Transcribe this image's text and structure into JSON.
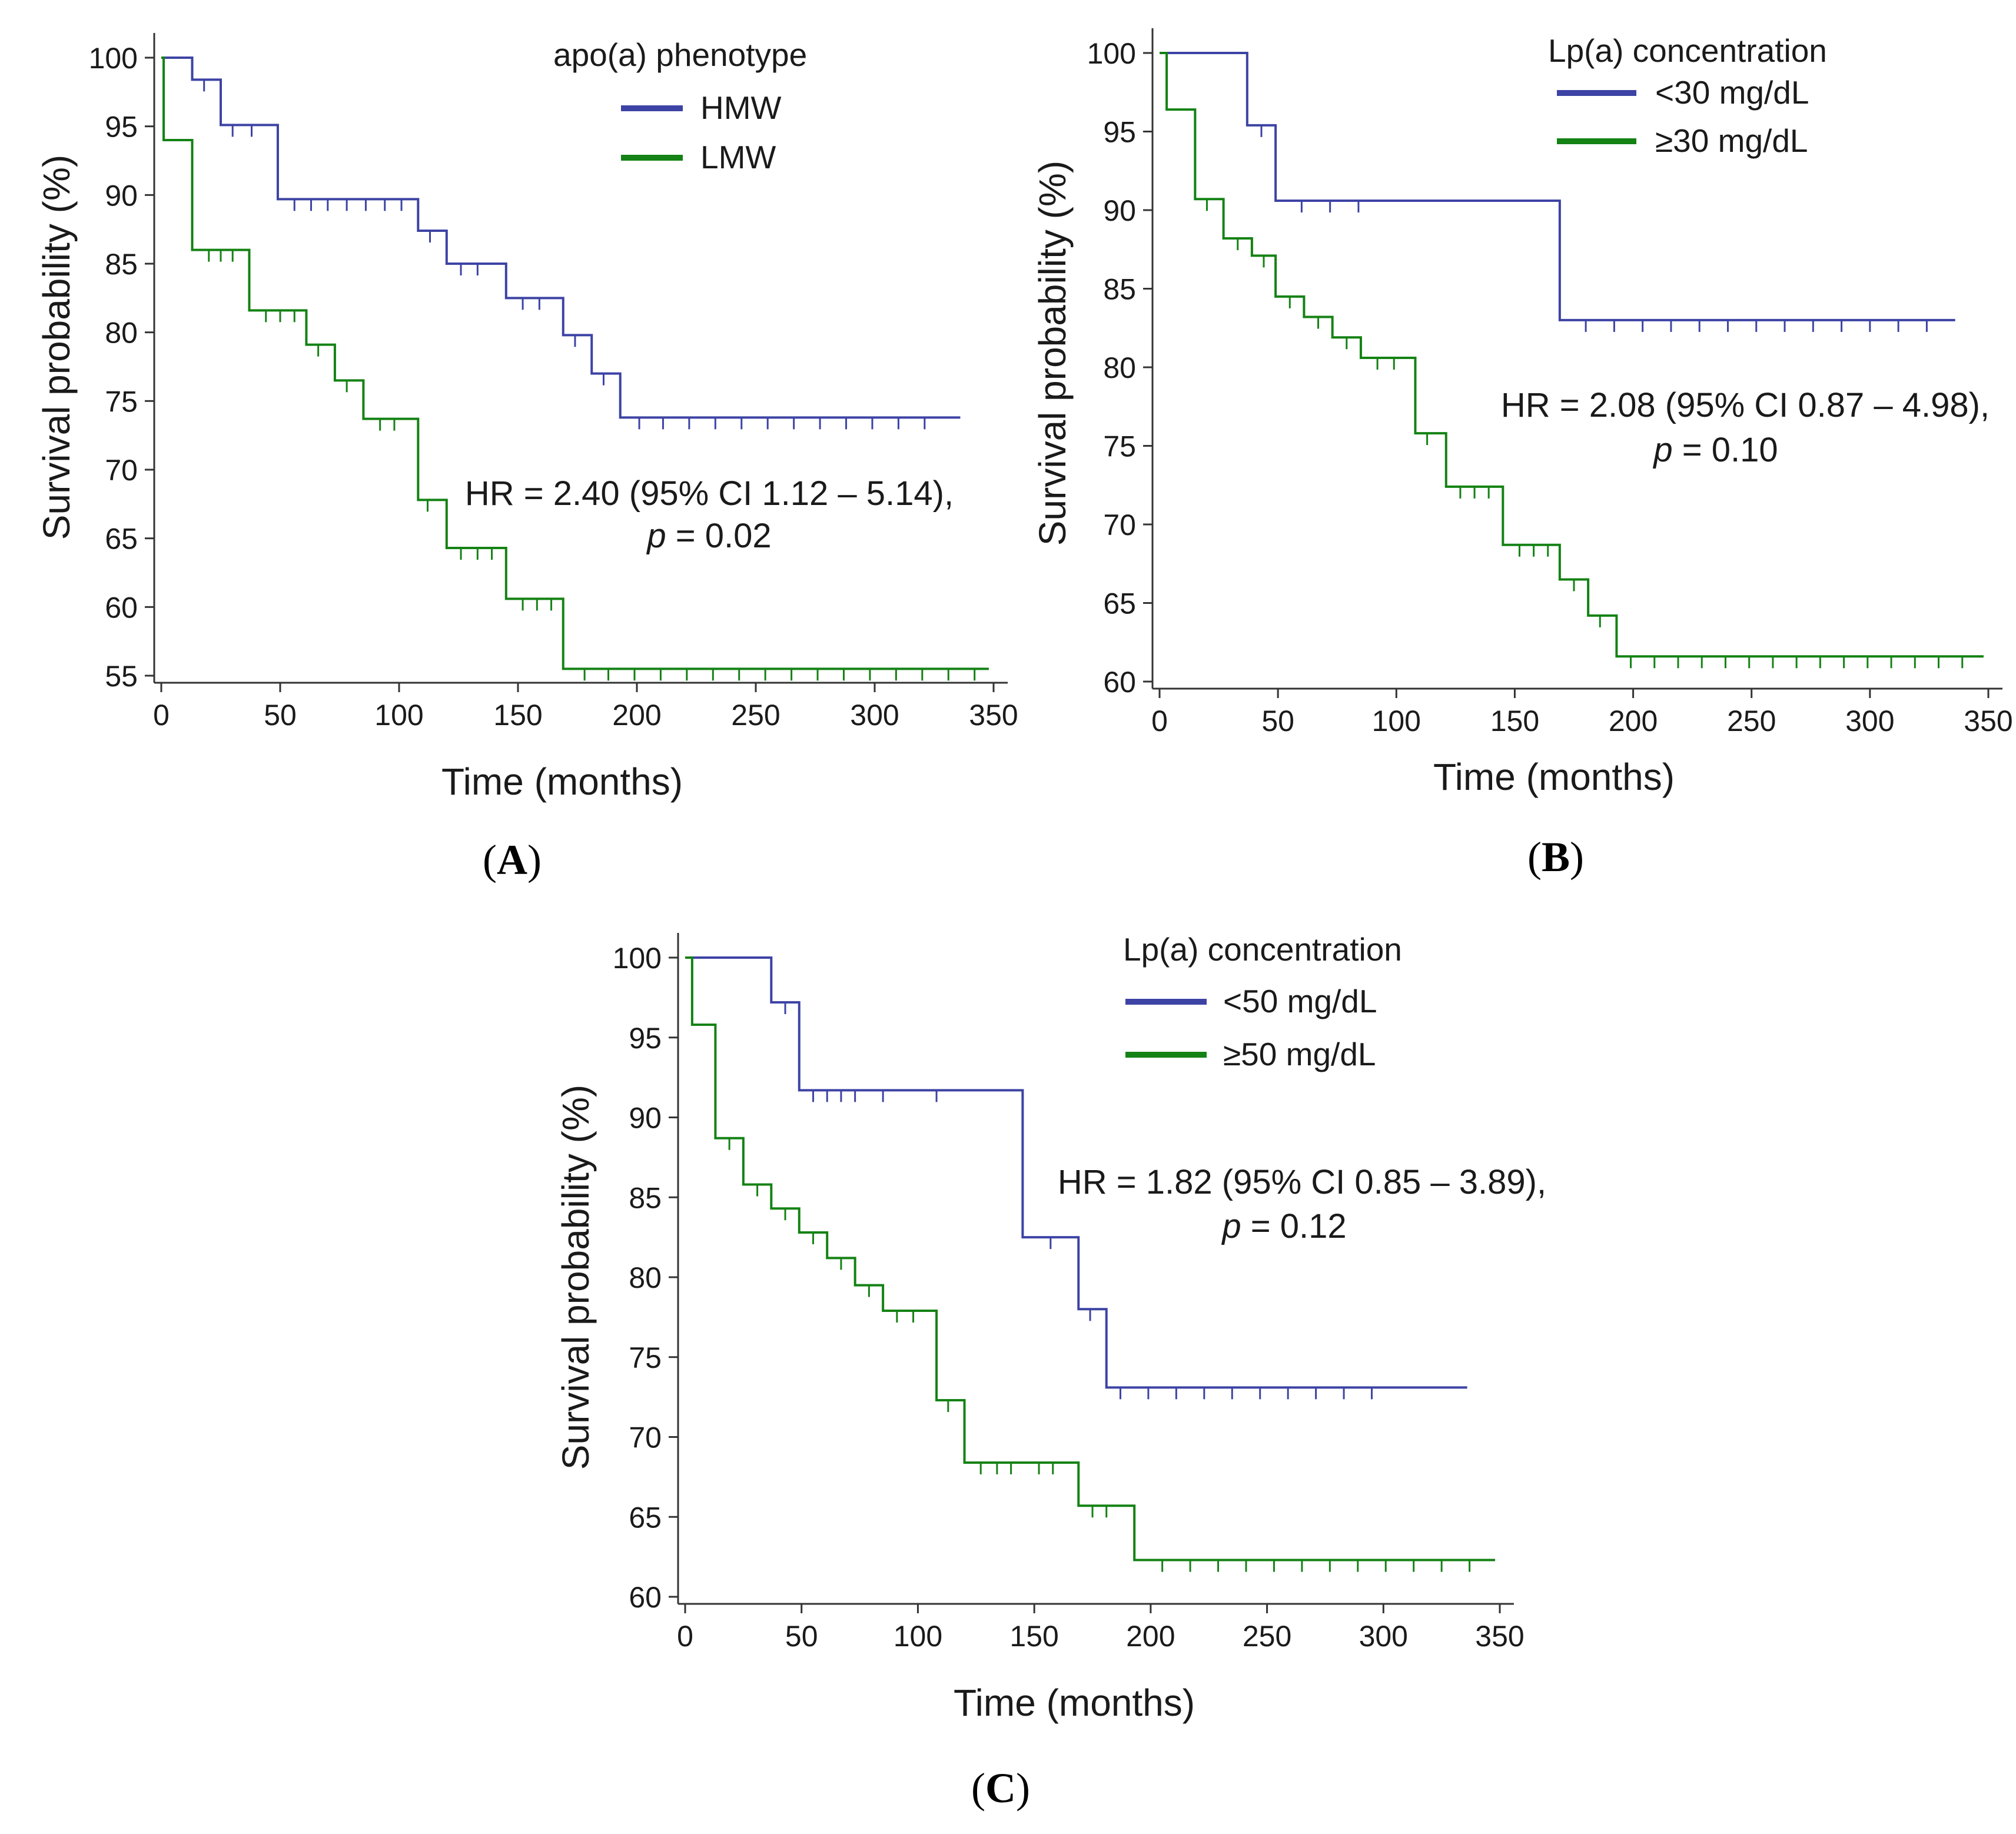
{
  "colors": {
    "high_risk_low": "#3d43a4",
    "high_risk_high": "#148214",
    "axis": "#333333"
  },
  "chart_data": [
    {
      "id": "A",
      "panel_label": "A",
      "type": "line",
      "subtype": "kaplan-meier",
      "xlabel": "Time (months)",
      "ylabel": "Survival probability (%)",
      "xlim": [
        0,
        350
      ],
      "ylim": [
        55,
        100
      ],
      "xticks": [
        0,
        50,
        100,
        150,
        200,
        250,
        300,
        350
      ],
      "yticks": [
        55,
        60,
        65,
        70,
        75,
        80,
        85,
        90,
        95,
        100
      ],
      "legend_title": "apo(a) phenotype",
      "legend_position": "top-right",
      "annotation": {
        "line1": "HR = 2.40 (95% CI 1.12 – 5.14),",
        "p_symbol": "p",
        "p_text": " = 0.02"
      },
      "series": [
        {
          "name": "HMW",
          "color": "#3d43a4",
          "steps": [
            [
              0,
              100
            ],
            [
              13,
              98.4
            ],
            [
              25,
              95.1
            ],
            [
              49,
              89.7
            ],
            [
              108,
              87.4
            ],
            [
              120,
              85.0
            ],
            [
              145,
              82.5
            ],
            [
              169,
              79.8
            ],
            [
              181,
              77.0
            ],
            [
              193,
              73.8
            ]
          ],
          "end": 336,
          "censors": [
            [
              18,
              98.4
            ],
            [
              30,
              95.1
            ],
            [
              38,
              95.1
            ],
            [
              56,
              89.7
            ],
            [
              63,
              89.7
            ],
            [
              70,
              89.7
            ],
            [
              78,
              89.7
            ],
            [
              86,
              89.7
            ],
            [
              94,
              89.7
            ],
            [
              101,
              89.7
            ],
            [
              113,
              87.4
            ],
            [
              126,
              85.0
            ],
            [
              133,
              85.0
            ],
            [
              152,
              82.5
            ],
            [
              159,
              82.5
            ],
            [
              174,
              79.8
            ],
            [
              186,
              77.0
            ],
            [
              201,
              73.8
            ],
            [
              211,
              73.8
            ],
            [
              222,
              73.8
            ],
            [
              233,
              73.8
            ],
            [
              244,
              73.8
            ],
            [
              255,
              73.8
            ],
            [
              266,
              73.8
            ],
            [
              277,
              73.8
            ],
            [
              288,
              73.8
            ],
            [
              299,
              73.8
            ],
            [
              310,
              73.8
            ],
            [
              321,
              73.8
            ]
          ]
        },
        {
          "name": "LMW",
          "color": "#148214",
          "steps": [
            [
              0,
              100
            ],
            [
              1,
              94.0
            ],
            [
              13,
              86.0
            ],
            [
              37,
              81.6
            ],
            [
              61,
              79.1
            ],
            [
              73,
              76.5
            ],
            [
              85,
              73.7
            ],
            [
              108,
              67.8
            ],
            [
              120,
              64.3
            ],
            [
              145,
              60.6
            ],
            [
              169,
              55.5
            ]
          ],
          "end": 348,
          "censors": [
            [
              20,
              86.0
            ],
            [
              25,
              86.0
            ],
            [
              30,
              86.0
            ],
            [
              44,
              81.6
            ],
            [
              50,
              81.6
            ],
            [
              56,
              81.6
            ],
            [
              66,
              79.1
            ],
            [
              78,
              76.5
            ],
            [
              92,
              73.7
            ],
            [
              98,
              73.7
            ],
            [
              112,
              67.8
            ],
            [
              126,
              64.3
            ],
            [
              133,
              64.3
            ],
            [
              139,
              64.3
            ],
            [
              152,
              60.6
            ],
            [
              158,
              60.6
            ],
            [
              164,
              60.6
            ],
            [
              178,
              55.5
            ],
            [
              188,
              55.5
            ],
            [
              199,
              55.5
            ],
            [
              210,
              55.5
            ],
            [
              221,
              55.5
            ],
            [
              232,
              55.5
            ],
            [
              243,
              55.5
            ],
            [
              254,
              55.5
            ],
            [
              265,
              55.5
            ],
            [
              276,
              55.5
            ],
            [
              287,
              55.5
            ],
            [
              298,
              55.5
            ],
            [
              309,
              55.5
            ],
            [
              320,
              55.5
            ],
            [
              331,
              55.5
            ],
            [
              342,
              55.5
            ]
          ]
        }
      ]
    },
    {
      "id": "B",
      "panel_label": "B",
      "type": "line",
      "subtype": "kaplan-meier",
      "xlabel": "Time (months)",
      "ylabel": "Survival probability (%)",
      "xlim": [
        0,
        350
      ],
      "ylim": [
        60,
        100
      ],
      "xticks": [
        0,
        50,
        100,
        150,
        200,
        250,
        300,
        350
      ],
      "yticks": [
        60,
        65,
        70,
        75,
        80,
        85,
        90,
        95,
        100
      ],
      "legend_title": "Lp(a) concentration",
      "legend_position": "top-right",
      "annotation": {
        "line1": "HR = 2.08 (95% CI 0.87 – 4.98),",
        "p_symbol": "p",
        "p_text": " = 0.10"
      },
      "series": [
        {
          "name": "<30 mg/dL",
          "color": "#3d43a4",
          "steps": [
            [
              0,
              100
            ],
            [
              37,
              95.4
            ],
            [
              49,
              90.6
            ],
            [
              169,
              83.0
            ]
          ],
          "end": 336,
          "censors": [
            [
              43,
              95.4
            ],
            [
              60,
              90.6
            ],
            [
              72,
              90.6
            ],
            [
              84,
              90.6
            ],
            [
              180,
              83.0
            ],
            [
              192,
              83.0
            ],
            [
              204,
              83.0
            ],
            [
              216,
              83.0
            ],
            [
              228,
              83.0
            ],
            [
              240,
              83.0
            ],
            [
              252,
              83.0
            ],
            [
              264,
              83.0
            ],
            [
              276,
              83.0
            ],
            [
              288,
              83.0
            ],
            [
              300,
              83.0
            ],
            [
              312,
              83.0
            ],
            [
              324,
              83.0
            ]
          ]
        },
        {
          "name": "≥30 mg/dL",
          "color": "#148214",
          "steps": [
            [
              0,
              100
            ],
            [
              3,
              96.4
            ],
            [
              15,
              90.7
            ],
            [
              27,
              88.2
            ],
            [
              39,
              87.1
            ],
            [
              49,
              84.5
            ],
            [
              61,
              83.2
            ],
            [
              73,
              81.9
            ],
            [
              85,
              80.6
            ],
            [
              108,
              75.8
            ],
            [
              121,
              72.4
            ],
            [
              145,
              68.7
            ],
            [
              169,
              66.5
            ],
            [
              181,
              64.2
            ],
            [
              193,
              61.6
            ]
          ],
          "end": 348,
          "censors": [
            [
              20,
              90.7
            ],
            [
              33,
              88.2
            ],
            [
              44,
              87.1
            ],
            [
              55,
              84.5
            ],
            [
              67,
              83.2
            ],
            [
              79,
              81.9
            ],
            [
              92,
              80.6
            ],
            [
              99,
              80.6
            ],
            [
              113,
              75.8
            ],
            [
              127,
              72.4
            ],
            [
              133,
              72.4
            ],
            [
              139,
              72.4
            ],
            [
              152,
              68.7
            ],
            [
              158,
              68.7
            ],
            [
              164,
              68.7
            ],
            [
              175,
              66.5
            ],
            [
              186,
              64.2
            ],
            [
              199,
              61.6
            ],
            [
              209,
              61.6
            ],
            [
              219,
              61.6
            ],
            [
              229,
              61.6
            ],
            [
              239,
              61.6
            ],
            [
              249,
              61.6
            ],
            [
              259,
              61.6
            ],
            [
              269,
              61.6
            ],
            [
              279,
              61.6
            ],
            [
              289,
              61.6
            ],
            [
              299,
              61.6
            ],
            [
              309,
              61.6
            ],
            [
              319,
              61.6
            ],
            [
              329,
              61.6
            ],
            [
              339,
              61.6
            ]
          ]
        }
      ]
    },
    {
      "id": "C",
      "panel_label": "C",
      "type": "line",
      "subtype": "kaplan-meier",
      "xlabel": "Time (months)",
      "ylabel": "Survival probability (%)",
      "xlim": [
        0,
        350
      ],
      "ylim": [
        60,
        100
      ],
      "xticks": [
        0,
        50,
        100,
        150,
        200,
        250,
        300,
        350
      ],
      "yticks": [
        60,
        65,
        70,
        75,
        80,
        85,
        90,
        95,
        100
      ],
      "legend_title": "Lp(a) concentration",
      "legend_position": "top-right",
      "annotation": {
        "line1": "HR = 1.82 (95% CI 0.85 – 3.89),",
        "p_symbol": "p",
        "p_text": " = 0.12"
      },
      "series": [
        {
          "name": "<50 mg/dL",
          "color": "#3d43a4",
          "steps": [
            [
              0,
              100
            ],
            [
              37,
              97.2
            ],
            [
              49,
              91.7
            ],
            [
              145,
              82.5
            ],
            [
              169,
              78.0
            ],
            [
              181,
              73.1
            ]
          ],
          "end": 336,
          "censors": [
            [
              43,
              97.2
            ],
            [
              55,
              91.7
            ],
            [
              61,
              91.7
            ],
            [
              67,
              91.7
            ],
            [
              73,
              91.7
            ],
            [
              85,
              91.7
            ],
            [
              108,
              91.7
            ],
            [
              157,
              82.5
            ],
            [
              174,
              78.0
            ],
            [
              187,
              73.1
            ],
            [
              199,
              73.1
            ],
            [
              211,
              73.1
            ],
            [
              223,
              73.1
            ],
            [
              235,
              73.1
            ],
            [
              247,
              73.1
            ],
            [
              259,
              73.1
            ],
            [
              271,
              73.1
            ],
            [
              283,
              73.1
            ],
            [
              295,
              73.1
            ]
          ]
        },
        {
          "name": "≥50 mg/dL",
          "color": "#148214",
          "steps": [
            [
              0,
              100
            ],
            [
              3,
              95.8
            ],
            [
              13,
              88.7
            ],
            [
              25,
              85.8
            ],
            [
              37,
              84.3
            ],
            [
              49,
              82.8
            ],
            [
              61,
              81.2
            ],
            [
              73,
              79.5
            ],
            [
              85,
              77.9
            ],
            [
              108,
              72.3
            ],
            [
              120,
              68.4
            ],
            [
              169,
              65.7
            ],
            [
              193,
              62.3
            ]
          ],
          "end": 348,
          "censors": [
            [
              19,
              88.7
            ],
            [
              31,
              85.8
            ],
            [
              43,
              84.3
            ],
            [
              55,
              82.8
            ],
            [
              67,
              81.2
            ],
            [
              79,
              79.5
            ],
            [
              91,
              77.9
            ],
            [
              98,
              77.9
            ],
            [
              113,
              72.3
            ],
            [
              127,
              68.4
            ],
            [
              134,
              68.4
            ],
            [
              140,
              68.4
            ],
            [
              152,
              68.4
            ],
            [
              158,
              68.4
            ],
            [
              175,
              65.7
            ],
            [
              181,
              65.7
            ],
            [
              205,
              62.3
            ],
            [
              217,
              62.3
            ],
            [
              229,
              62.3
            ],
            [
              241,
              62.3
            ],
            [
              253,
              62.3
            ],
            [
              265,
              62.3
            ],
            [
              277,
              62.3
            ],
            [
              289,
              62.3
            ],
            [
              301,
              62.3
            ],
            [
              313,
              62.3
            ],
            [
              325,
              62.3
            ],
            [
              337,
              62.3
            ]
          ]
        }
      ]
    }
  ]
}
